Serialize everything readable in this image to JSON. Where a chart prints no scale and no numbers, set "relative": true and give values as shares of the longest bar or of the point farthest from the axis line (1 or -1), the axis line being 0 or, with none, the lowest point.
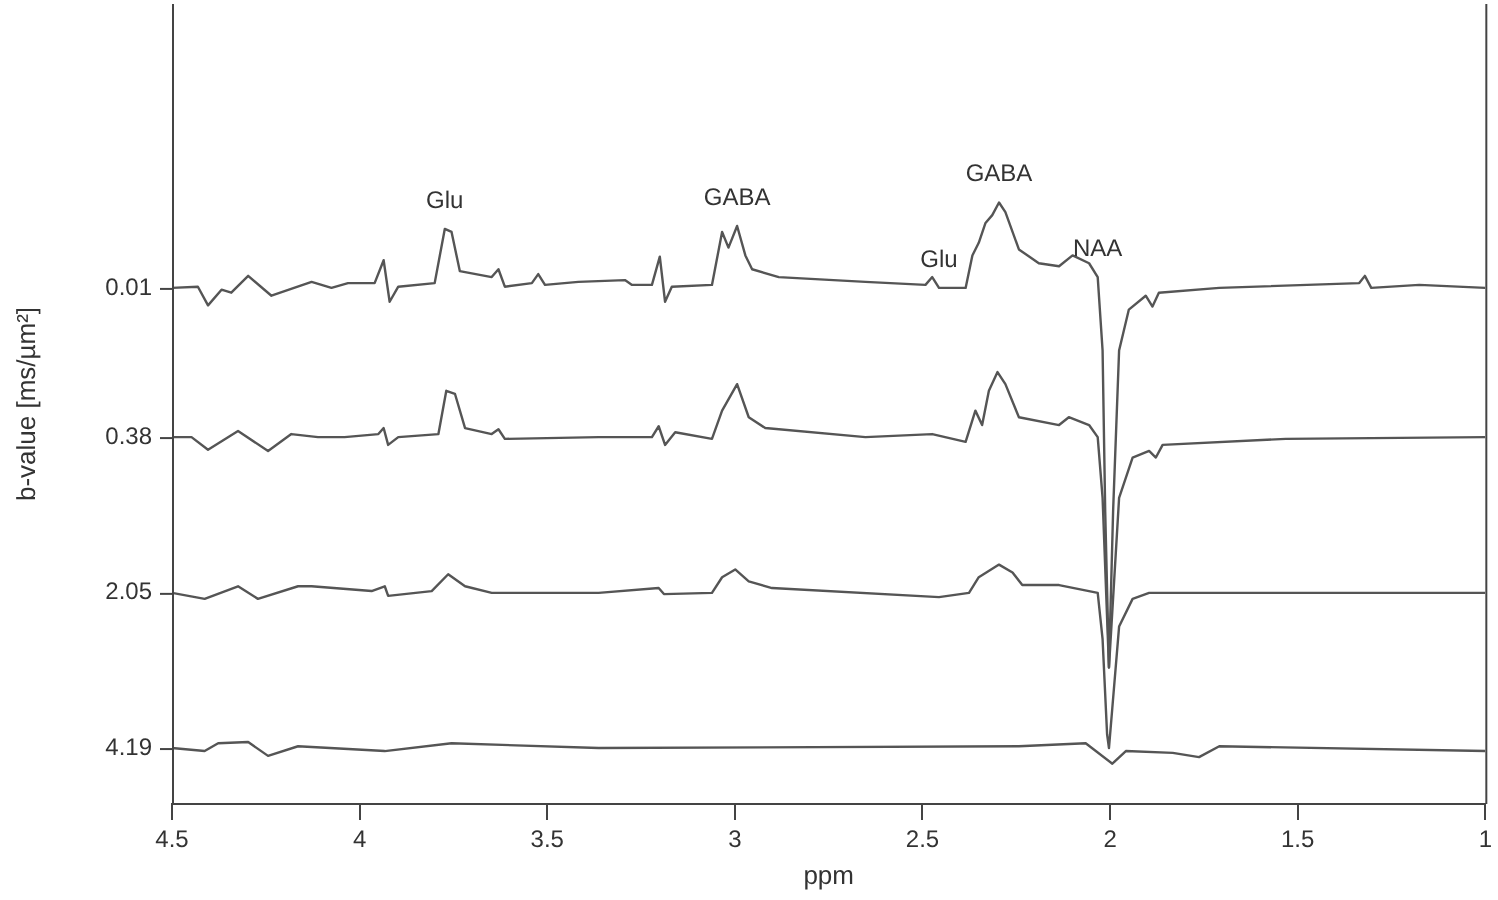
{
  "chart_data": {
    "type": "line",
    "relative": true,
    "xlabel": "ppm",
    "ylabel": "b-value [ms/µm²]",
    "xlim": [
      4.5,
      1
    ],
    "xticks": [
      4.5,
      4,
      3.5,
      3,
      2.5,
      2,
      1.5,
      1
    ],
    "grid": false,
    "legend": false,
    "series": [
      {
        "name": "0.01",
        "color": "#555555",
        "x": [
          4.5,
          4.431,
          4.404,
          4.368,
          4.342,
          4.297,
          4.235,
          4.128,
          4.075,
          4.031,
          3.96,
          3.936,
          3.92,
          3.897,
          3.8,
          3.773,
          3.755,
          3.733,
          3.648,
          3.63,
          3.613,
          3.541,
          3.524,
          3.506,
          3.417,
          3.293,
          3.274,
          3.221,
          3.2,
          3.186,
          3.168,
          3.061,
          3.034,
          3.017,
          2.994,
          2.972,
          2.954,
          2.883,
          2.652,
          2.492,
          2.474,
          2.456,
          2.385,
          2.367,
          2.35,
          2.332,
          2.314,
          2.296,
          2.279,
          2.243,
          2.19,
          2.136,
          2.1,
          2.056,
          2.033,
          2.02,
          2.013,
          2.003,
          1.992,
          1.976,
          1.95,
          1.905,
          1.887,
          1.87,
          1.709,
          1.336,
          1.321,
          1.304,
          1.176,
          1.0
        ],
        "values": [
          0.858,
          0.86,
          0.829,
          0.855,
          0.85,
          0.878,
          0.845,
          0.868,
          0.858,
          0.866,
          0.866,
          0.904,
          0.835,
          0.86,
          0.866,
          0.956,
          0.951,
          0.886,
          0.876,
          0.889,
          0.86,
          0.866,
          0.881,
          0.863,
          0.868,
          0.871,
          0.863,
          0.863,
          0.91,
          0.835,
          0.86,
          0.863,
          0.951,
          0.925,
          0.961,
          0.912,
          0.889,
          0.876,
          0.868,
          0.863,
          0.876,
          0.858,
          0.858,
          0.912,
          0.933,
          0.966,
          0.979,
          1.0,
          0.984,
          0.922,
          0.899,
          0.894,
          0.912,
          0.899,
          0.876,
          0.754,
          0.486,
          0.227,
          0.486,
          0.754,
          0.822,
          0.845,
          0.827,
          0.85,
          0.858,
          0.866,
          0.878,
          0.858,
          0.863,
          0.858
        ]
      },
      {
        "name": "0.38",
        "color": "#555555",
        "x": [
          4.5,
          4.448,
          4.404,
          4.324,
          4.244,
          4.182,
          4.111,
          4.04,
          3.95,
          3.936,
          3.924,
          3.897,
          3.79,
          3.769,
          3.746,
          3.719,
          3.648,
          3.63,
          3.613,
          3.363,
          3.221,
          3.203,
          3.186,
          3.159,
          3.061,
          3.034,
          2.994,
          2.963,
          2.919,
          2.652,
          2.474,
          2.385,
          2.359,
          2.341,
          2.323,
          2.3,
          2.279,
          2.243,
          2.136,
          2.11,
          2.056,
          2.033,
          2.02,
          2.003,
          1.976,
          1.94,
          1.896,
          1.878,
          1.86,
          1.532,
          1.0
        ],
        "values": [
          0.61,
          0.61,
          0.589,
          0.62,
          0.587,
          0.615,
          0.61,
          0.61,
          0.615,
          0.625,
          0.597,
          0.61,
          0.615,
          0.687,
          0.682,
          0.625,
          0.615,
          0.623,
          0.607,
          0.61,
          0.61,
          0.628,
          0.597,
          0.618,
          0.607,
          0.654,
          0.698,
          0.643,
          0.625,
          0.61,
          0.615,
          0.602,
          0.654,
          0.63,
          0.687,
          0.718,
          0.698,
          0.643,
          0.63,
          0.643,
          0.63,
          0.61,
          0.509,
          0.227,
          0.509,
          0.576,
          0.587,
          0.576,
          0.597,
          0.607,
          0.61
        ]
      },
      {
        "name": "2.05",
        "color": "#555555",
        "x": [
          4.5,
          4.413,
          4.324,
          4.271,
          4.164,
          4.128,
          3.968,
          3.933,
          3.924,
          3.808,
          3.764,
          3.719,
          3.648,
          3.363,
          3.203,
          3.189,
          3.061,
          3.034,
          2.999,
          2.963,
          2.901,
          2.456,
          2.376,
          2.35,
          2.296,
          2.26,
          2.234,
          2.136,
          2.033,
          2.02,
          2.008,
          2.003,
          1.994,
          1.976,
          1.94,
          1.896,
          1.0
        ],
        "values": [
          0.351,
          0.341,
          0.362,
          0.341,
          0.362,
          0.362,
          0.354,
          0.362,
          0.346,
          0.354,
          0.382,
          0.362,
          0.351,
          0.351,
          0.359,
          0.349,
          0.351,
          0.377,
          0.39,
          0.37,
          0.359,
          0.344,
          0.351,
          0.377,
          0.398,
          0.385,
          0.364,
          0.364,
          0.351,
          0.274,
          0.116,
          0.093,
          0.16,
          0.295,
          0.341,
          0.351,
          0.351
        ]
      },
      {
        "name": "4.19",
        "color": "#555555",
        "x": [
          4.5,
          4.413,
          4.377,
          4.297,
          4.244,
          4.164,
          3.933,
          3.755,
          3.363,
          2.243,
          2.065,
          1.994,
          1.958,
          1.833,
          1.763,
          1.709,
          1.0
        ],
        "values": [
          0.093,
          0.088,
          0.101,
          0.103,
          0.08,
          0.096,
          0.088,
          0.101,
          0.093,
          0.096,
          0.101,
          0.067,
          0.088,
          0.085,
          0.078,
          0.096,
          0.088
        ]
      }
    ],
    "annotations": [
      {
        "text": "Glu",
        "x": 3.773,
        "y": 0.956
      },
      {
        "text": "GABA",
        "x": 2.994,
        "y": 0.961
      },
      {
        "text": "Glu",
        "x": 2.456,
        "y": 0.858
      },
      {
        "text": "GABA",
        "x": 2.296,
        "y": 1.0
      },
      {
        "text": "NAA",
        "x": 2.033,
        "y": 0.876
      }
    ]
  }
}
